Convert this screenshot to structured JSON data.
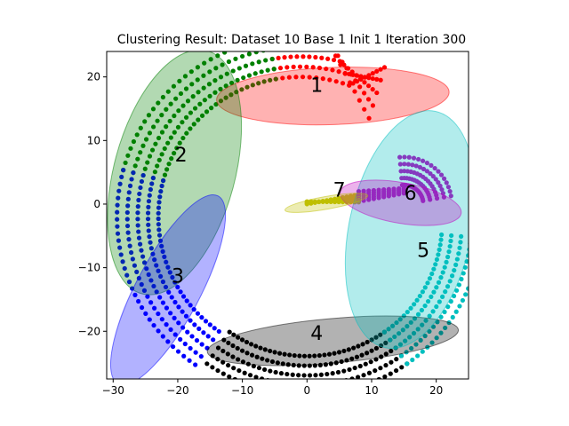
{
  "chart_data": {
    "type": "scatter",
    "title": "Clustering Result: Dataset 10 Base 1 Init 1 Iteration 300",
    "xlim": [
      -31,
      25
    ],
    "ylim": [
      -27.5,
      24
    ],
    "x_ticks": [
      -30,
      -20,
      -10,
      0,
      10,
      20
    ],
    "y_ticks": [
      -20,
      -10,
      0,
      10,
      20
    ],
    "x_tick_labels": [
      "−30",
      "−20",
      "−10",
      "0",
      "10",
      "20"
    ],
    "y_tick_labels": [
      "−20",
      "−10",
      "0",
      "10",
      "20"
    ],
    "grid": false,
    "clusters": [
      {
        "label": "1",
        "color": "#ff0000",
        "label_pos": [
          1.5,
          18.5
        ],
        "ellipse": {
          "cx": 4,
          "cy": 17,
          "rx": 18,
          "ry": 4.5,
          "angle": 2
        }
      },
      {
        "label": "2",
        "color": "#008000",
        "label_pos": [
          -19.5,
          7.5
        ],
        "ellipse": {
          "cx": -20.5,
          "cy": 5,
          "rx": 19.5,
          "ry": 9.5,
          "angle": 75
        }
      },
      {
        "label": "3",
        "color": "#0000ff",
        "label_pos": [
          -20,
          -11.5
        ],
        "ellipse": {
          "cx": -21.5,
          "cy": -13.5,
          "rx": 16.5,
          "ry": 5,
          "angle": 62
        }
      },
      {
        "label": "4",
        "color": "#000000",
        "label_pos": [
          1.5,
          -20.5
        ],
        "ellipse": {
          "cx": 4,
          "cy": -21.5,
          "rx": 19.5,
          "ry": 3.5,
          "angle": 5
        }
      },
      {
        "label": "5",
        "color": "#00bfbf",
        "label_pos": [
          18,
          -7.5
        ],
        "ellipse": {
          "cx": 16,
          "cy": -4,
          "rx": 9.5,
          "ry": 19,
          "angle": -12
        }
      },
      {
        "label": "6",
        "color": "#bf00bf",
        "label_pos": [
          16,
          1.5
        ],
        "ellipse": {
          "cx": 14.5,
          "cy": 0.2,
          "rx": 9.5,
          "ry": 3.2,
          "angle": -10
        }
      },
      {
        "label": "7",
        "color": "#bfbf00",
        "label_pos": [
          5,
          2
        ],
        "ellipse": {
          "cx": 3,
          "cy": 0.2,
          "rx": 6.5,
          "ry": 1.0,
          "angle": 10
        }
      }
    ]
  }
}
